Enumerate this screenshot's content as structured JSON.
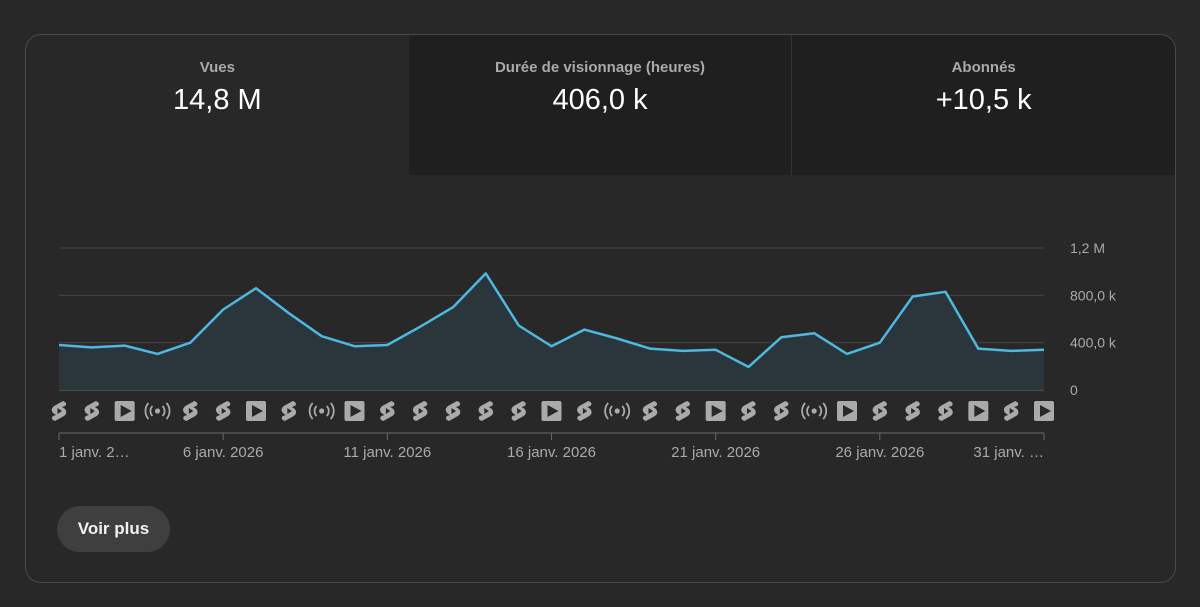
{
  "tabs": [
    {
      "label": "Vues",
      "value": "14,8 M"
    },
    {
      "label": "Durée de visionnage (heures)",
      "value": "406,0 k"
    },
    {
      "label": "Abonnés",
      "value": "+10,5 k"
    }
  ],
  "button": {
    "label": "Voir plus"
  },
  "colors": {
    "line": "#4db8e0",
    "fill": "#2b363c",
    "grid": "#444444",
    "icon": "#aaaaaa"
  },
  "chart_data": {
    "type": "area",
    "series": [
      {
        "values": [
          380000,
          360000,
          375000,
          305000,
          400000,
          680000,
          860000,
          650000,
          455000,
          370000,
          380000,
          535000,
          700000,
          985000,
          545000,
          370000,
          510000,
          435000,
          350000,
          330000,
          340000,
          195000,
          445000,
          480000,
          305000,
          400000,
          790000,
          830000,
          350000,
          330000,
          340000
        ]
      }
    ],
    "x_ticks": [
      {
        "label": "1 janv. 2…",
        "index": 0
      },
      {
        "label": "6 janv. 2026",
        "index": 5
      },
      {
        "label": "11 janv. 2026",
        "index": 10
      },
      {
        "label": "16 janv. 2026",
        "index": 15
      },
      {
        "label": "21 janv. 2026",
        "index": 20
      },
      {
        "label": "26 janv. 2026",
        "index": 25
      },
      {
        "label": "31 janv. …",
        "index": 30
      }
    ],
    "y_ticks": [
      {
        "label": "0",
        "value": 0
      },
      {
        "label": "400,0 k",
        "value": 400000
      },
      {
        "label": "800,0 k",
        "value": 800000
      },
      {
        "label": "1,2 M",
        "value": 1200000
      }
    ],
    "ylim": [
      0,
      1200000
    ],
    "grid": true,
    "content_icons": [
      "short-icon",
      "short-icon",
      "video-icon",
      "live-icon",
      "short-icon",
      "short-icon",
      "video-icon",
      "short-icon",
      "live-icon",
      "video-icon",
      "short-icon",
      "short-icon",
      "short-icon",
      "short-icon",
      "short-icon",
      "video-icon",
      "short-icon",
      "live-icon",
      "short-icon",
      "short-icon",
      "video-icon",
      "short-icon",
      "short-icon",
      "live-icon",
      "video-icon",
      "short-icon",
      "short-icon",
      "short-icon",
      "video-icon",
      "short-icon",
      "video-icon"
    ]
  }
}
